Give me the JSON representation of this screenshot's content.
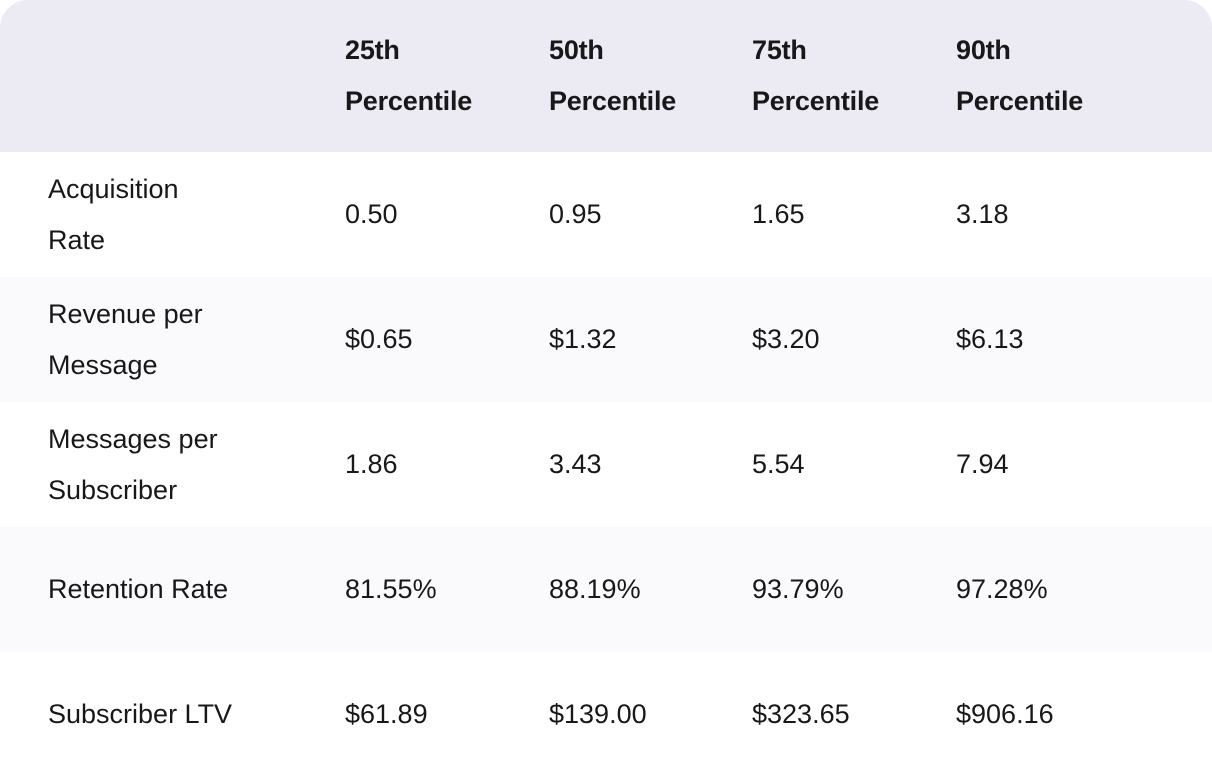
{
  "table": {
    "header": {
      "row_label_column": "",
      "columns": [
        "25th Percentile",
        "50th Percentile",
        "75th Percentile",
        "90th Percentile"
      ]
    },
    "rows": [
      {
        "label": "Acquisition Rate",
        "values": [
          "0.50",
          "0.95",
          "1.65",
          "3.18"
        ]
      },
      {
        "label": "Revenue per Message",
        "values": [
          "$0.65",
          "$1.32",
          "$3.20",
          "$6.13"
        ]
      },
      {
        "label": "Messages per Subscriber",
        "values": [
          "1.86",
          "3.43",
          "5.54",
          "7.94"
        ]
      },
      {
        "label": "Retention Rate",
        "values": [
          "81.55%",
          "88.19%",
          "93.79%",
          "97.28%"
        ]
      },
      {
        "label": "Subscriber LTV",
        "values": [
          "$61.89",
          "$139.00",
          "$323.65",
          "$906.16"
        ]
      }
    ]
  },
  "colors": {
    "header_bg": "#ECEBF3",
    "stripe_bg": "#FAFAFC",
    "row_bg": "#FFFFFF",
    "text": "#18181B"
  },
  "chart_data": {
    "type": "table",
    "title": "",
    "categories": [
      "25th Percentile",
      "50th Percentile",
      "75th Percentile",
      "90th Percentile"
    ],
    "series": [
      {
        "name": "Acquisition Rate",
        "values": [
          0.5,
          0.95,
          1.65,
          3.18
        ],
        "format": "number"
      },
      {
        "name": "Revenue per Message",
        "values": [
          0.65,
          1.32,
          3.2,
          6.13
        ],
        "format": "usd"
      },
      {
        "name": "Messages per Subscriber",
        "values": [
          1.86,
          3.43,
          5.54,
          7.94
        ],
        "format": "number"
      },
      {
        "name": "Retention Rate",
        "values": [
          81.55,
          88.19,
          93.79,
          97.28
        ],
        "format": "percent"
      },
      {
        "name": "Subscriber LTV",
        "values": [
          61.89,
          139.0,
          323.65,
          906.16
        ],
        "format": "usd"
      }
    ],
    "layout": {
      "zebra_striping": true,
      "header_position": "top",
      "row_label_column": true
    }
  }
}
